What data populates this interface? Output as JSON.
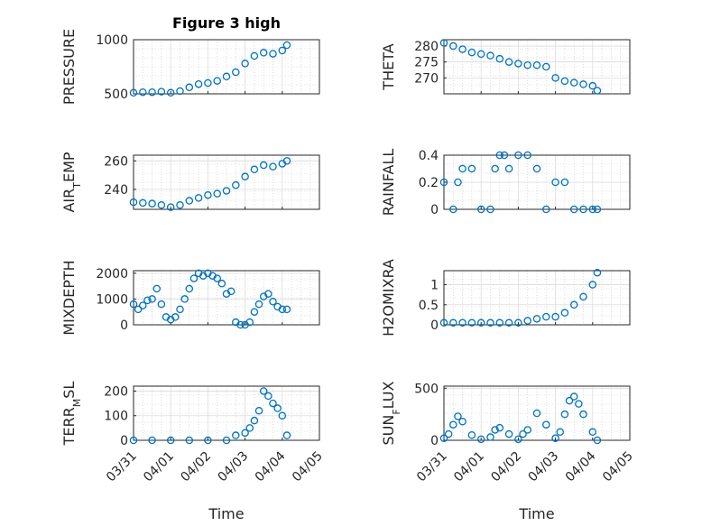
{
  "figure": {
    "title": "Figure 3 high",
    "xlabel": "Time",
    "marker_color": "#0072BD",
    "x_ticks": [
      "03/31",
      "04/01",
      "04/02",
      "04/03",
      "04/04",
      "04/05"
    ]
  },
  "chart_data": [
    {
      "type": "scatter",
      "ylabel": "PRESSURE",
      "yticks": [
        500,
        1000
      ],
      "ylim": [
        500,
        1000
      ],
      "x": [
        "03/31 00:00",
        "03/31 06:00",
        "03/31 12:00",
        "03/31 18:00",
        "04/01 00:00",
        "04/01 06:00",
        "04/01 12:00",
        "04/01 18:00",
        "04/02 00:00",
        "04/02 06:00",
        "04/02 12:00",
        "04/02 18:00",
        "04/03 00:00",
        "04/03 06:00",
        "04/03 12:00",
        "04/03 18:00",
        "04/04 00:00",
        "04/04 03:00"
      ],
      "values": [
        510,
        515,
        515,
        520,
        510,
        525,
        560,
        590,
        600,
        620,
        660,
        700,
        780,
        850,
        880,
        870,
        900,
        950
      ]
    },
    {
      "type": "scatter",
      "ylabel": "THETA",
      "yticks": [
        270,
        275,
        280
      ],
      "ylim": [
        265,
        282
      ],
      "x": [
        "03/31 00:00",
        "03/31 06:00",
        "03/31 12:00",
        "03/31 18:00",
        "04/01 00:00",
        "04/01 06:00",
        "04/01 12:00",
        "04/01 18:00",
        "04/02 00:00",
        "04/02 06:00",
        "04/02 12:00",
        "04/02 18:00",
        "04/03 00:00",
        "04/03 06:00",
        "04/03 12:00",
        "04/03 18:00",
        "04/04 00:00",
        "04/04 03:00"
      ],
      "values": [
        281,
        280,
        279,
        278,
        277.5,
        277,
        276,
        275,
        274.5,
        274,
        274,
        273.5,
        270,
        269,
        268.5,
        268,
        267.5,
        266
      ]
    },
    {
      "type": "scatter",
      "ylabel": "AIR_TEMP",
      "yticks": [
        240,
        260
      ],
      "ylim": [
        226,
        264
      ],
      "x": [
        "03/31 00:00",
        "03/31 06:00",
        "03/31 12:00",
        "03/31 18:00",
        "04/01 00:00",
        "04/01 06:00",
        "04/01 12:00",
        "04/01 18:00",
        "04/02 00:00",
        "04/02 06:00",
        "04/02 12:00",
        "04/02 18:00",
        "04/03 00:00",
        "04/03 06:00",
        "04/03 12:00",
        "04/03 18:00",
        "04/04 00:00",
        "04/04 03:00"
      ],
      "values": [
        231,
        230.5,
        230,
        229,
        227.5,
        229,
        232,
        234,
        236,
        237,
        239,
        243,
        249,
        254,
        257,
        256,
        258,
        260
      ]
    },
    {
      "type": "scatter",
      "ylabel": "RAINFALL",
      "yticks": [
        0,
        0.2,
        0.4
      ],
      "ylim": [
        0,
        0.4
      ],
      "x": [
        "03/31 00:00",
        "03/31 06:00",
        "03/31 09:00",
        "03/31 12:00",
        "03/31 18:00",
        "04/01 00:00",
        "04/01 06:00",
        "04/01 09:00",
        "04/01 12:00",
        "04/01 15:00",
        "04/01 18:00",
        "04/02 00:00",
        "04/02 06:00",
        "04/02 12:00",
        "04/02 18:00",
        "04/03 00:00",
        "04/03 06:00",
        "04/03 12:00",
        "04/03 18:00",
        "04/04 00:00",
        "04/04 03:00"
      ],
      "values": [
        0.2,
        0,
        0.2,
        0.3,
        0.3,
        0,
        0,
        0.3,
        0.4,
        0.4,
        0.3,
        0.4,
        0.4,
        0.3,
        0,
        0.2,
        0.2,
        0,
        0,
        0,
        0
      ]
    },
    {
      "type": "scatter",
      "ylabel": "MIXDEPTH",
      "yticks": [
        0,
        1000,
        2000
      ],
      "ylim": [
        0,
        2100
      ],
      "x": [
        "03/31 00:00",
        "03/31 03:00",
        "03/31 06:00",
        "03/31 09:00",
        "03/31 12:00",
        "03/31 15:00",
        "03/31 18:00",
        "03/31 21:00",
        "04/01 00:00",
        "04/01 03:00",
        "04/01 06:00",
        "04/01 09:00",
        "04/01 12:00",
        "04/01 15:00",
        "04/01 18:00",
        "04/01 21:00",
        "04/02 00:00",
        "04/02 03:00",
        "04/02 06:00",
        "04/02 09:00",
        "04/02 12:00",
        "04/02 15:00",
        "04/02 18:00",
        "04/02 21:00",
        "04/03 00:00",
        "04/03 03:00",
        "04/03 06:00",
        "04/03 09:00",
        "04/03 12:00",
        "04/03 15:00",
        "04/03 18:00",
        "04/03 21:00",
        "04/04 00:00",
        "04/04 03:00"
      ],
      "values": [
        800,
        600,
        750,
        950,
        1000,
        1400,
        800,
        300,
        200,
        300,
        600,
        1000,
        1400,
        1800,
        2000,
        1900,
        2000,
        1900,
        1800,
        1600,
        1200,
        1300,
        100,
        0,
        0,
        100,
        500,
        800,
        1100,
        1200,
        900,
        700,
        600,
        600
      ]
    },
    {
      "type": "scatter",
      "ylabel": "H2OMIXRA",
      "yticks": [
        0,
        0.5,
        1
      ],
      "ylim": [
        0,
        1.35
      ],
      "x": [
        "03/31 00:00",
        "03/31 06:00",
        "03/31 12:00",
        "03/31 18:00",
        "04/01 00:00",
        "04/01 06:00",
        "04/01 12:00",
        "04/01 18:00",
        "04/02 00:00",
        "04/02 06:00",
        "04/02 12:00",
        "04/02 18:00",
        "04/03 00:00",
        "04/03 06:00",
        "04/03 12:00",
        "04/03 18:00",
        "04/04 00:00",
        "04/04 03:00"
      ],
      "values": [
        0.05,
        0.05,
        0.05,
        0.05,
        0.05,
        0.05,
        0.05,
        0.05,
        0.05,
        0.1,
        0.15,
        0.2,
        0.2,
        0.3,
        0.5,
        0.7,
        1.0,
        1.3
      ]
    },
    {
      "type": "scatter",
      "ylabel": "TERR_MSL",
      "yticks": [
        0,
        100,
        200
      ],
      "ylim": [
        0,
        220
      ],
      "x": [
        "03/31 00:00",
        "03/31 12:00",
        "04/01 00:00",
        "04/01 12:00",
        "04/02 00:00",
        "04/02 12:00",
        "04/02 18:00",
        "04/03 00:00",
        "04/03 03:00",
        "04/03 06:00",
        "04/03 09:00",
        "04/03 12:00",
        "04/03 15:00",
        "04/03 18:00",
        "04/03 21:00",
        "04/04 00:00",
        "04/04 03:00"
      ],
      "values": [
        0,
        0,
        0,
        0,
        0,
        0,
        20,
        30,
        50,
        80,
        120,
        200,
        180,
        150,
        130,
        100,
        20
      ]
    },
    {
      "type": "scatter",
      "ylabel": "SUN_FLUX",
      "yticks": [
        0,
        500
      ],
      "ylim": [
        0,
        520
      ],
      "x": [
        "03/31 00:00",
        "03/31 03:00",
        "03/31 06:00",
        "03/31 09:00",
        "03/31 12:00",
        "03/31 18:00",
        "04/01 00:00",
        "04/01 06:00",
        "04/01 09:00",
        "04/01 12:00",
        "04/01 18:00",
        "04/02 00:00",
        "04/02 03:00",
        "04/02 06:00",
        "04/02 12:00",
        "04/02 18:00",
        "04/03 00:00",
        "04/03 03:00",
        "04/03 06:00",
        "04/03 09:00",
        "04/03 12:00",
        "04/03 15:00",
        "04/03 18:00",
        "04/04 00:00",
        "04/04 03:00"
      ],
      "values": [
        20,
        60,
        150,
        230,
        180,
        50,
        10,
        30,
        100,
        120,
        60,
        10,
        60,
        100,
        260,
        150,
        20,
        80,
        250,
        380,
        420,
        350,
        250,
        80,
        0
      ]
    }
  ]
}
